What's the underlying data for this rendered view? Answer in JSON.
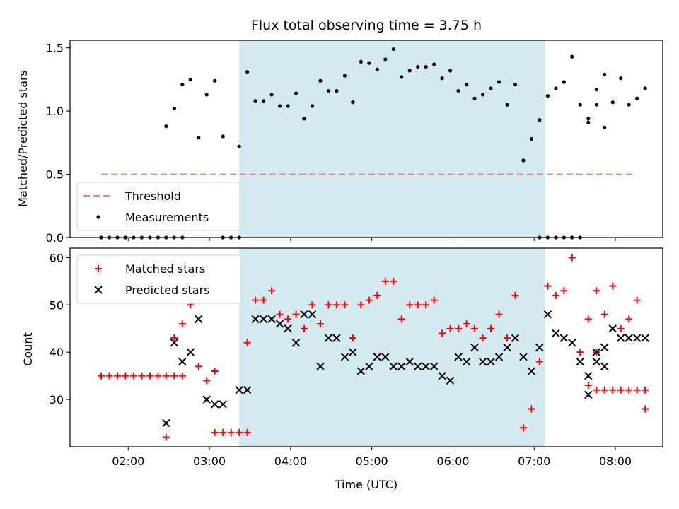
{
  "chart_data": [
    {
      "type": "scatter",
      "title": "Flux total observing time = 3.75 h",
      "xlabel": "",
      "ylabel": "Matched/Predicted stars",
      "xlim": [
        "01:17",
        "08:35"
      ],
      "ylim": [
        0,
        1.56
      ],
      "yticks": [
        "0.0",
        "0.5",
        "1.0",
        "1.5"
      ],
      "shaded_interval": [
        "03:22",
        "07:08"
      ],
      "shade_color": "#d4eaf1",
      "legend": {
        "position": "lower-left"
      },
      "threshold": {
        "name": "Threshold",
        "value": 0.5,
        "x_start": "01:40",
        "x_end": "08:15",
        "color": "#f08080"
      },
      "series": [
        {
          "name": "Measurements",
          "color": "#000000",
          "marker": "dot",
          "points": [
            [
              "01:40",
              0
            ],
            [
              "01:46",
              0
            ],
            [
              "01:52",
              0
            ],
            [
              "01:58",
              0
            ],
            [
              "02:04",
              0
            ],
            [
              "02:10",
              0
            ],
            [
              "02:16",
              0
            ],
            [
              "02:22",
              0
            ],
            [
              "02:28",
              0
            ],
            [
              "02:34",
              0
            ],
            [
              "02:40",
              0
            ],
            [
              "02:28",
              0.88
            ],
            [
              "02:34",
              1.02
            ],
            [
              "02:40",
              1.21
            ],
            [
              "02:46",
              1.25
            ],
            [
              "02:52",
              0.79
            ],
            [
              "02:58",
              1.13
            ],
            [
              "03:04",
              1.24
            ],
            [
              "03:10",
              0.8
            ],
            [
              "03:10",
              0
            ],
            [
              "03:16",
              0
            ],
            [
              "03:22",
              0
            ],
            [
              "03:22",
              0.72
            ],
            [
              "03:28",
              1.31
            ],
            [
              "03:34",
              1.08
            ],
            [
              "03:40",
              1.08
            ],
            [
              "03:46",
              1.13
            ],
            [
              "03:52",
              1.04
            ],
            [
              "03:58",
              1.04
            ],
            [
              "04:04",
              1.14
            ],
            [
              "04:10",
              0.94
            ],
            [
              "04:16",
              1.04
            ],
            [
              "04:22",
              1.24
            ],
            [
              "04:28",
              1.16
            ],
            [
              "04:34",
              1.16
            ],
            [
              "04:40",
              1.28
            ],
            [
              "04:46",
              1.07
            ],
            [
              "04:52",
              1.39
            ],
            [
              "04:58",
              1.38
            ],
            [
              "05:04",
              1.33
            ],
            [
              "05:10",
              1.41
            ],
            [
              "05:16",
              1.49
            ],
            [
              "05:22",
              1.27
            ],
            [
              "05:28",
              1.32
            ],
            [
              "05:34",
              1.35
            ],
            [
              "05:40",
              1.35
            ],
            [
              "05:46",
              1.37
            ],
            [
              "05:52",
              1.26
            ],
            [
              "05:58",
              1.32
            ],
            [
              "06:04",
              1.16
            ],
            [
              "06:10",
              1.21
            ],
            [
              "06:16",
              1.1
            ],
            [
              "06:22",
              1.13
            ],
            [
              "06:28",
              1.18
            ],
            [
              "06:34",
              1.23
            ],
            [
              "06:40",
              1.05
            ],
            [
              "06:46",
              1.21
            ],
            [
              "06:52",
              0.61
            ],
            [
              "06:58",
              0.78
            ],
            [
              "07:04",
              0.93
            ],
            [
              "07:10",
              1.12
            ],
            [
              "07:16",
              1.18
            ],
            [
              "07:22",
              1.23
            ],
            [
              "07:28",
              1.43
            ],
            [
              "07:34",
              1.05
            ],
            [
              "07:40",
              0.94
            ],
            [
              "07:46",
              1.05
            ],
            [
              "07:52",
              0.87
            ],
            [
              "07:04",
              0
            ],
            [
              "07:10",
              0
            ],
            [
              "07:16",
              0
            ],
            [
              "07:22",
              0
            ],
            [
              "07:28",
              0
            ],
            [
              "07:34",
              0
            ],
            [
              "07:40",
              0.91
            ],
            [
              "07:46",
              1.17
            ],
            [
              "07:52",
              1.29
            ],
            [
              "07:58",
              1.07
            ],
            [
              "08:04",
              1.26
            ],
            [
              "08:10",
              1.05
            ],
            [
              "08:16",
              1.1
            ],
            [
              "08:22",
              1.18
            ]
          ]
        }
      ]
    },
    {
      "type": "scatter",
      "title": "",
      "xlabel": "Time (UTC)",
      "ylabel": "Count",
      "xlim": [
        "01:17",
        "08:35"
      ],
      "ylim": [
        20,
        62
      ],
      "yticks": [
        "30",
        "40",
        "50",
        "60"
      ],
      "xticks": [
        "02:00",
        "03:00",
        "04:00",
        "05:00",
        "06:00",
        "07:00",
        "08:00"
      ],
      "shaded_interval": [
        "03:22",
        "07:08"
      ],
      "shade_color": "#d4eaf1",
      "legend": {
        "position": "upper-left"
      },
      "series": [
        {
          "name": "Matched stars",
          "color": "#ff0000",
          "marker": "plus",
          "points": [
            [
              "01:40",
              35
            ],
            [
              "01:46",
              35
            ],
            [
              "01:52",
              35
            ],
            [
              "01:58",
              35
            ],
            [
              "02:04",
              35
            ],
            [
              "02:10",
              35
            ],
            [
              "02:16",
              35
            ],
            [
              "02:22",
              35
            ],
            [
              "02:28",
              35
            ],
            [
              "02:34",
              35
            ],
            [
              "02:40",
              35
            ],
            [
              "02:28",
              22
            ],
            [
              "02:34",
              43
            ],
            [
              "02:40",
              46
            ],
            [
              "02:46",
              50
            ],
            [
              "02:52",
              37
            ],
            [
              "02:58",
              34
            ],
            [
              "03:04",
              36
            ],
            [
              "03:04",
              23
            ],
            [
              "03:10",
              23
            ],
            [
              "03:16",
              23
            ],
            [
              "03:22",
              23
            ],
            [
              "03:28",
              23
            ],
            [
              "03:28",
              42
            ],
            [
              "03:34",
              51
            ],
            [
              "03:40",
              51
            ],
            [
              "03:46",
              53
            ],
            [
              "03:52",
              48
            ],
            [
              "03:58",
              47
            ],
            [
              "04:04",
              48
            ],
            [
              "04:10",
              45
            ],
            [
              "04:16",
              50
            ],
            [
              "04:22",
              46
            ],
            [
              "04:28",
              50
            ],
            [
              "04:34",
              50
            ],
            [
              "04:40",
              50
            ],
            [
              "04:46",
              43
            ],
            [
              "04:52",
              50
            ],
            [
              "04:58",
              51
            ],
            [
              "05:04",
              52
            ],
            [
              "05:10",
              55
            ],
            [
              "05:16",
              55
            ],
            [
              "05:22",
              47
            ],
            [
              "05:28",
              50
            ],
            [
              "05:34",
              50
            ],
            [
              "05:40",
              50
            ],
            [
              "05:46",
              51
            ],
            [
              "05:52",
              44
            ],
            [
              "05:58",
              45
            ],
            [
              "06:04",
              45
            ],
            [
              "06:10",
              46
            ],
            [
              "06:16",
              45
            ],
            [
              "06:22",
              43
            ],
            [
              "06:28",
              45
            ],
            [
              "06:34",
              48
            ],
            [
              "06:40",
              43
            ],
            [
              "06:46",
              52
            ],
            [
              "06:52",
              24
            ],
            [
              "06:58",
              28
            ],
            [
              "07:04",
              38
            ],
            [
              "07:10",
              54
            ],
            [
              "07:16",
              52
            ],
            [
              "07:22",
              53
            ],
            [
              "07:28",
              60
            ],
            [
              "07:34",
              40
            ],
            [
              "07:40",
              33
            ],
            [
              "07:46",
              40
            ],
            [
              "07:46",
              32
            ],
            [
              "07:52",
              32
            ],
            [
              "07:58",
              32
            ],
            [
              "08:04",
              32
            ],
            [
              "08:10",
              32
            ],
            [
              "08:16",
              32
            ],
            [
              "08:22",
              32
            ],
            [
              "08:22",
              28
            ],
            [
              "07:40",
              47
            ],
            [
              "07:46",
              53
            ],
            [
              "07:52",
              48
            ],
            [
              "07:58",
              54
            ],
            [
              "08:04",
              45
            ],
            [
              "08:10",
              47
            ],
            [
              "08:16",
              51
            ]
          ]
        },
        {
          "name": "Predicted stars",
          "color": "#000000",
          "marker": "x",
          "points": [
            [
              "02:28",
              25
            ],
            [
              "02:34",
              42
            ],
            [
              "02:40",
              38
            ],
            [
              "02:46",
              40
            ],
            [
              "02:52",
              47
            ],
            [
              "02:58",
              30
            ],
            [
              "03:04",
              29
            ],
            [
              "03:10",
              29
            ],
            [
              "03:22",
              32
            ],
            [
              "03:28",
              32
            ],
            [
              "03:34",
              47
            ],
            [
              "03:40",
              47
            ],
            [
              "03:46",
              47
            ],
            [
              "03:52",
              46
            ],
            [
              "03:58",
              45
            ],
            [
              "04:04",
              42
            ],
            [
              "04:10",
              48
            ],
            [
              "04:16",
              48
            ],
            [
              "04:22",
              37
            ],
            [
              "04:28",
              43
            ],
            [
              "04:34",
              43
            ],
            [
              "04:40",
              39
            ],
            [
              "04:46",
              40
            ],
            [
              "04:52",
              36
            ],
            [
              "04:58",
              37
            ],
            [
              "05:04",
              39
            ],
            [
              "05:10",
              39
            ],
            [
              "05:16",
              37
            ],
            [
              "05:22",
              37
            ],
            [
              "05:28",
              38
            ],
            [
              "05:34",
              37
            ],
            [
              "05:40",
              37
            ],
            [
              "05:46",
              37
            ],
            [
              "05:52",
              35
            ],
            [
              "05:58",
              34
            ],
            [
              "06:04",
              39
            ],
            [
              "06:10",
              38
            ],
            [
              "06:16",
              41
            ],
            [
              "06:22",
              38
            ],
            [
              "06:28",
              38
            ],
            [
              "06:34",
              39
            ],
            [
              "06:40",
              41
            ],
            [
              "06:46",
              43
            ],
            [
              "06:52",
              39
            ],
            [
              "06:58",
              36
            ],
            [
              "07:04",
              41
            ],
            [
              "07:10",
              48
            ],
            [
              "07:16",
              44
            ],
            [
              "07:22",
              43
            ],
            [
              "07:28",
              42
            ],
            [
              "07:34",
              38
            ],
            [
              "07:40",
              35
            ],
            [
              "07:46",
              38
            ],
            [
              "07:52",
              37
            ],
            [
              "07:40",
              31
            ],
            [
              "07:46",
              40
            ],
            [
              "07:52",
              41
            ],
            [
              "07:58",
              45
            ],
            [
              "08:04",
              43
            ],
            [
              "08:10",
              43
            ],
            [
              "08:16",
              43
            ],
            [
              "08:22",
              43
            ]
          ]
        }
      ]
    }
  ]
}
